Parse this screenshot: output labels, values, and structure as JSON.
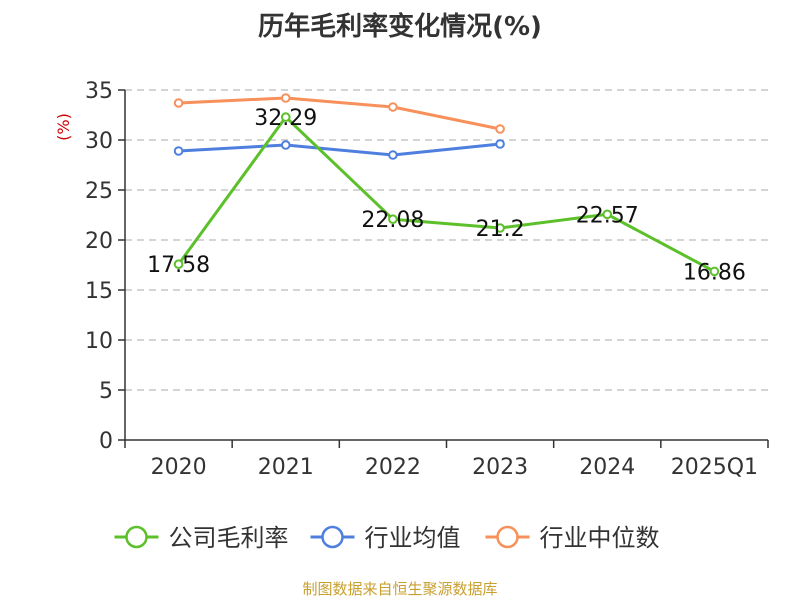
{
  "chart_data": {
    "type": "line",
    "title": "历年毛利率变化情况(%)",
    "ylabel": "(%)",
    "xlabel": "",
    "categories": [
      "2020",
      "2021",
      "2022",
      "2023",
      "2024",
      "2025Q1"
    ],
    "ylim": [
      0,
      35
    ],
    "yticks": [
      0,
      5,
      10,
      15,
      20,
      25,
      30,
      35
    ],
    "grid": true,
    "legend_position": "bottom",
    "series": [
      {
        "name": "公司毛利率",
        "color": "#5cc02a",
        "values": [
          17.58,
          32.29,
          22.08,
          21.2,
          22.57,
          16.86
        ],
        "labels": [
          "17.58",
          "32.29",
          "22.08",
          "21.2",
          "22.57",
          "16.86"
        ]
      },
      {
        "name": "行业均值",
        "color": "#4f7fde",
        "values": [
          28.9,
          29.5,
          28.5,
          29.6,
          null,
          null
        ]
      },
      {
        "name": "行业中位数",
        "color": "#f7905a",
        "values": [
          33.7,
          34.2,
          33.3,
          31.1,
          null,
          null
        ]
      }
    ]
  },
  "footer": {
    "source": "制图数据来自恒生聚源数据库"
  }
}
